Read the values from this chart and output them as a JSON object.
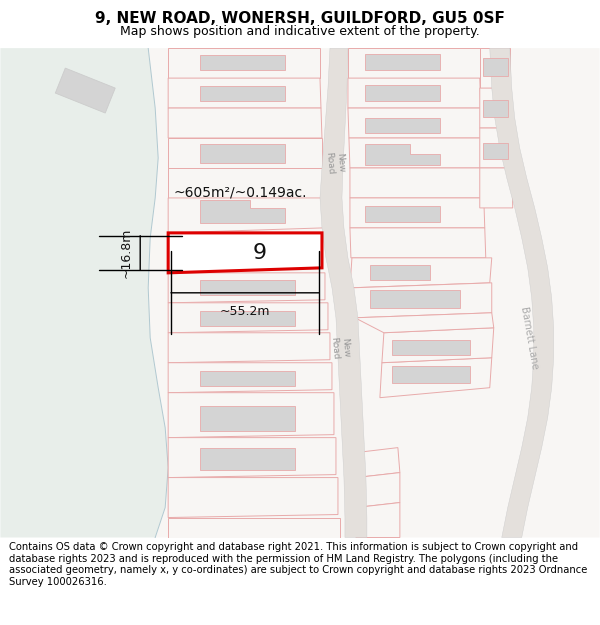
{
  "title": "9, NEW ROAD, WONERSH, GUILDFORD, GU5 0SF",
  "subtitle": "Map shows position and indicative extent of the property.",
  "footer": "Contains OS data © Crown copyright and database right 2021. This information is subject to Crown copyright and database rights 2023 and is reproduced with the permission of HM Land Registry. The polygons (including the associated geometry, namely x, y co-ordinates) are subject to Crown copyright and database rights 2023 Ordnance Survey 100026316.",
  "map_bg": "#f0f0ee",
  "green_area_color": "#e8eeea",
  "road_fill": "#e8e8e8",
  "building_fill": "#d4d4d4",
  "building_outline": "#e8aaaa",
  "parcel_outline": "#e8aaaa",
  "plot_outline_color": "#dd0000",
  "plot_fill": "#ffffff",
  "dim_color": "#111111",
  "road_text_color": "#aaaaaa",
  "label_9_text": "9",
  "area_label": "~605m²/~0.149ac.",
  "width_label": "~55.2m",
  "height_label": "~16.8m",
  "road_label_new": "New Road",
  "barnett_label": "Barnett Lane",
  "title_fontsize": 11,
  "subtitle_fontsize": 9,
  "footer_fontsize": 7.2
}
